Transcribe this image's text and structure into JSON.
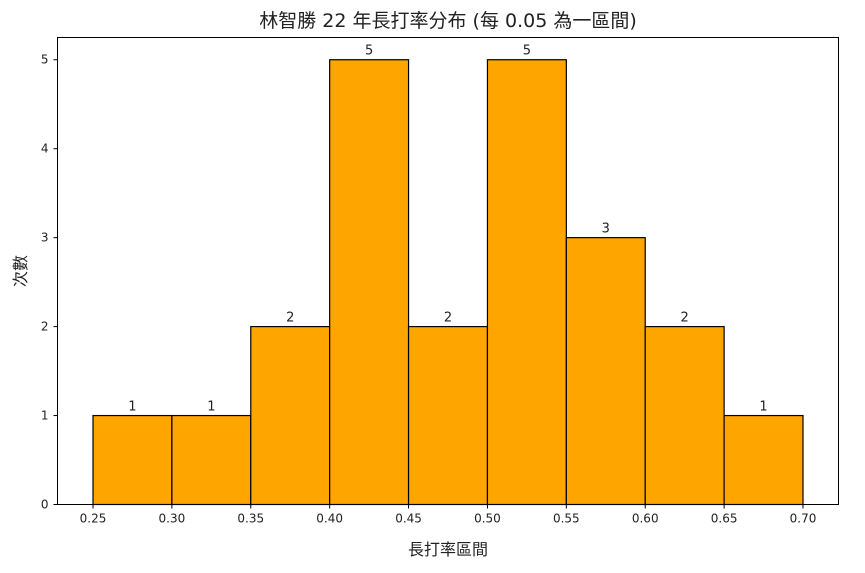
{
  "chart_data": {
    "type": "bar",
    "title": "林智勝 22 年長打率分布 (每 0.05 為一區間)",
    "xlabel": "長打率區間",
    "ylabel": "次數",
    "bin_edges": [
      0.25,
      0.3,
      0.35,
      0.4,
      0.45,
      0.5,
      0.55,
      0.6,
      0.65,
      0.7
    ],
    "values": [
      1,
      1,
      2,
      5,
      2,
      5,
      3,
      2,
      1
    ],
    "xticks": [
      "0.25",
      "0.30",
      "0.35",
      "0.40",
      "0.45",
      "0.50",
      "0.55",
      "0.60",
      "0.65",
      "0.70"
    ],
    "yticks": [
      "0",
      "1",
      "2",
      "3",
      "4",
      "5"
    ],
    "xlim": [
      0.2275,
      0.7225
    ],
    "ylim": [
      0,
      5.25
    ],
    "grid": false,
    "bar_color": "#FFA500",
    "edge_color": "#000000"
  }
}
